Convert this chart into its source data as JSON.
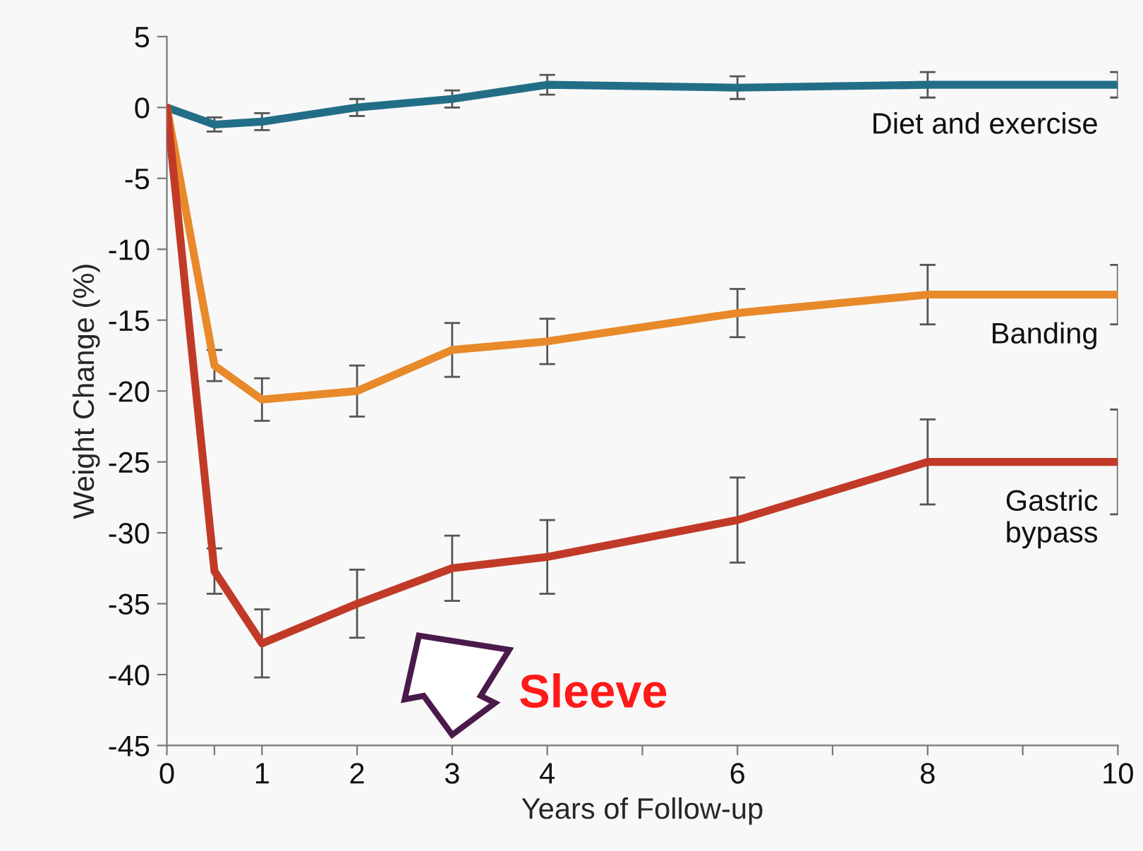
{
  "chart_data": {
    "type": "line",
    "xlabel": "Years of Follow-up",
    "ylabel": "Weight Change (%)",
    "x": [
      0,
      0.5,
      1,
      2,
      3,
      4,
      6,
      8,
      10
    ],
    "series": [
      {
        "name": "Diet and exercise",
        "color": "#236e87",
        "values": [
          0,
          -1.2,
          -1,
          0,
          0.6,
          1.6,
          1.4,
          1.6,
          1.6
        ],
        "errors": [
          null,
          0.5,
          0.6,
          0.6,
          0.6,
          0.7,
          0.8,
          0.9,
          0.9
        ]
      },
      {
        "name": "Banding",
        "color": "#e8892a",
        "values": [
          0,
          -18.2,
          -20.6,
          -20,
          -17.1,
          -16.5,
          -14.5,
          -13.2,
          -13.2
        ],
        "errors": [
          null,
          1.1,
          1.5,
          1.8,
          1.9,
          1.6,
          1.7,
          2.1,
          2.1
        ]
      },
      {
        "name": "Gastric\nbypass",
        "color": "#c13a28",
        "values": [
          0,
          -32.7,
          -37.8,
          -35,
          -32.5,
          -31.7,
          -29.1,
          -25,
          -25
        ],
        "errors": [
          null,
          1.6,
          2.4,
          2.4,
          2.3,
          2.6,
          3,
          3,
          3.7
        ]
      }
    ],
    "xlim": [
      0,
      10
    ],
    "ylim": [
      -45,
      5
    ],
    "xticks": [
      0,
      {
        "value": 0.5,
        "label": null
      },
      1,
      2,
      3,
      4,
      {
        "value": 5,
        "label": null
      },
      6,
      {
        "value": 7,
        "label": null
      },
      8,
      {
        "value": 9,
        "label": null
      },
      10
    ],
    "yticks": [
      -45,
      -40,
      -35,
      -30,
      -25,
      -20,
      -15,
      -10,
      -5,
      0,
      5
    ],
    "annotations": [
      "Sleeve"
    ],
    "grid": false,
    "legend": false,
    "marker": "none",
    "line_style": "solid"
  }
}
